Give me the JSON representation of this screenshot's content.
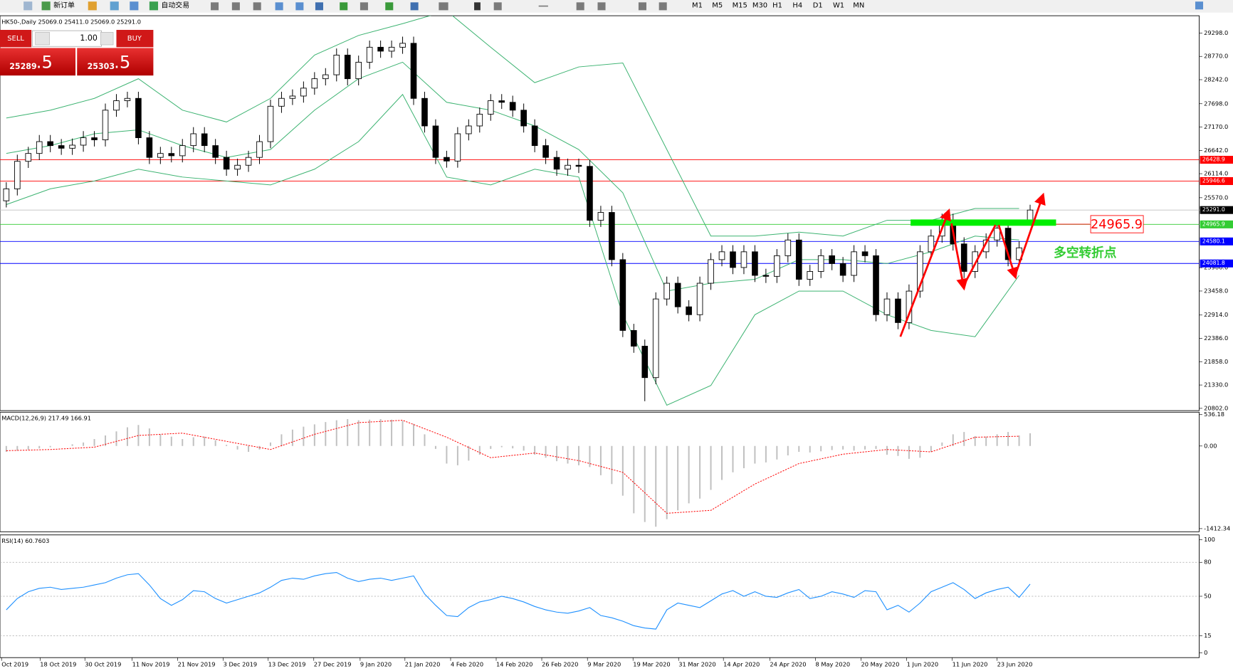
{
  "toolbar": {
    "new_order": "新订单",
    "auto_trading": "自动交易",
    "timeframes": [
      "M1",
      "M5",
      "M15",
      "M30",
      "H1",
      "H4",
      "D1",
      "W1",
      "MN"
    ]
  },
  "trade_panel": {
    "sell": "SELL",
    "buy": "BUY",
    "lots": "1.00",
    "bid": "25289",
    "bid_pips": ".5",
    "ask": "25303",
    "ask_pips": ".5"
  },
  "chart_data": [
    {
      "type": "candlestick",
      "title": "HK50-,Daily  25069.0 25411.0 25069.0 25291.0",
      "up_color": "#ffffff",
      "down_color": "#000000",
      "open": [
        25500,
        25771,
        26394,
        26572,
        26840,
        26750,
        26690,
        26760,
        26928,
        26880,
        27552,
        27766,
        27819,
        26928,
        26483,
        26572,
        26520,
        26750,
        27018,
        26750,
        26483,
        26216,
        26305,
        26483,
        26840,
        27641,
        27819,
        27872,
        28051,
        28264,
        28353,
        28799,
        28264,
        28638,
        28977,
        28888,
        28977,
        29066,
        27819,
        27195,
        26483,
        26400,
        27018,
        27195,
        27462,
        27766,
        27730,
        27552,
        27195,
        26750,
        26483,
        26216,
        26305,
        26280,
        25059,
        25237,
        24168,
        22565,
        22209,
        21497,
        23278,
        23634,
        23100,
        22922,
        23634,
        24168,
        24346,
        23990,
        24346,
        23812,
        23790,
        24257,
        24613,
        23723,
        23901,
        24257,
        24079,
        23812,
        24346,
        24257,
        22922,
        23278,
        22743,
        23456,
        24346,
        24702,
        25059,
        24524,
        23901,
        24346,
        24613,
        24880,
        24168,
        25069
      ],
      "high": [
        25921,
        26544,
        26722,
        26990,
        26990,
        26900,
        26910,
        27078,
        27078,
        27702,
        27916,
        27969,
        27969,
        27078,
        26722,
        26722,
        26900,
        27168,
        27168,
        26900,
        26633,
        26455,
        26633,
        26990,
        27791,
        27969,
        28022,
        28201,
        28414,
        28503,
        28949,
        28949,
        28788,
        29127,
        29127,
        29127,
        29216,
        29216,
        27969,
        27345,
        26633,
        27168,
        27345,
        27612,
        27916,
        27916,
        27880,
        27702,
        27345,
        26900,
        26633,
        26455,
        26455,
        26430,
        25387,
        25387,
        24318,
        22715,
        22359,
        23428,
        23784,
        23784,
        23250,
        23784,
        24318,
        24496,
        24496,
        24496,
        24496,
        23962,
        24407,
        24763,
        24763,
        24051,
        24407,
        24407,
        24229,
        24496,
        24496,
        24407,
        23428,
        23428,
        23606,
        24496,
        24852,
        25209,
        25209,
        24674,
        24496,
        24763,
        25030,
        25030,
        24585,
        25411
      ],
      "low": [
        25350,
        25621,
        26244,
        26422,
        26600,
        26540,
        26540,
        26610,
        26730,
        26730,
        27402,
        27616,
        26778,
        26333,
        26333,
        26370,
        26370,
        26600,
        26600,
        26333,
        26066,
        26066,
        26155,
        26333,
        26690,
        27491,
        27669,
        27722,
        27901,
        28114,
        28203,
        28114,
        28114,
        28488,
        28738,
        28738,
        28827,
        27669,
        27045,
        26333,
        26250,
        26250,
        26868,
        27045,
        27312,
        27580,
        27402,
        27045,
        26600,
        26333,
        26066,
        26066,
        26130,
        24909,
        24909,
        24018,
        22415,
        22059,
        20962,
        21347,
        23128,
        22950,
        22772,
        22772,
        23484,
        24018,
        23840,
        23840,
        23662,
        23640,
        23640,
        24107,
        23573,
        23573,
        23751,
        23929,
        23662,
        23662,
        24107,
        22772,
        22772,
        22593,
        22593,
        23306,
        24196,
        24552,
        24374,
        23751,
        23751,
        24196,
        24463,
        24018,
        24018,
        25069
      ],
      "close": [
        25771,
        26394,
        26572,
        26840,
        26750,
        26690,
        26760,
        26928,
        26880,
        27552,
        27766,
        27819,
        26928,
        26483,
        26572,
        26520,
        26750,
        27018,
        26750,
        26483,
        26216,
        26305,
        26483,
        26840,
        27641,
        27819,
        27872,
        28051,
        28264,
        28353,
        28799,
        28264,
        28638,
        28977,
        28888,
        28977,
        29066,
        27819,
        27195,
        26483,
        26400,
        27018,
        27195,
        27462,
        27766,
        27730,
        27552,
        27195,
        26750,
        26483,
        26216,
        26305,
        26280,
        25059,
        25237,
        24168,
        22565,
        22209,
        21497,
        23278,
        23634,
        23100,
        22922,
        23634,
        24168,
        24346,
        23990,
        24346,
        23812,
        23790,
        24257,
        24613,
        23723,
        23901,
        24257,
        24079,
        23812,
        24346,
        24257,
        22922,
        23278,
        22743,
        23456,
        24346,
        24702,
        25059,
        24524,
        23901,
        24346,
        24613,
        24880,
        24168,
        24435,
        25291
      ],
      "bollinger": {
        "color": "#3cb371",
        "x": [
          0,
          4,
          8,
          12,
          16,
          20,
          24,
          28,
          32,
          36,
          40,
          44,
          48,
          52,
          56,
          60,
          64,
          68,
          72,
          76,
          80,
          84,
          88,
          92
        ],
        "upper": [
          27374,
          27552,
          27819,
          28264,
          27552,
          27285,
          27819,
          28799,
          29244,
          29511,
          29800,
          28977,
          28175,
          28531,
          28620,
          26661,
          24702,
          24702,
          24791,
          24702,
          25059,
          25059,
          25326,
          25326
        ],
        "middle": [
          26572,
          26750,
          27018,
          27107,
          26750,
          26483,
          26661,
          27552,
          28264,
          28638,
          27730,
          27552,
          27195,
          26661,
          25682,
          23456,
          23634,
          23723,
          24168,
          24168,
          24079,
          24346,
          24702,
          24613
        ],
        "lower": [
          25415,
          25771,
          25949,
          26216,
          26038,
          25949,
          25860,
          26216,
          26840,
          27908,
          26038,
          25860,
          26216,
          26038,
          22921,
          20873,
          21319,
          22921,
          23456,
          23456,
          22921,
          22565,
          22423,
          23812
        ]
      },
      "hlines": [
        {
          "value": 26428.9,
          "color": "#ff0000"
        },
        {
          "value": 25946.6,
          "color": "#ff0000"
        },
        {
          "value": 25291,
          "label": "25291.0",
          "color": "#c0c0c0",
          "tag_color": "#000000"
        },
        {
          "value": 24965.9,
          "color": "#33cc33"
        },
        {
          "value": 24580.1,
          "color": "#0000ff"
        },
        {
          "value": 24081.8,
          "color": "#0000ff"
        }
      ],
      "annotations": [
        {
          "text": "24965.9"
        },
        {
          "text": "多空转折点"
        }
      ],
      "xlim": [
        -0.5714,
        108.357
      ],
      "ylim": [
        20750,
        29690
      ],
      "yticks": [
        {
          "value": 29298,
          "label": "29298.0"
        },
        {
          "value": 28770,
          "label": "28770.0"
        },
        {
          "value": 28242,
          "label": "28242.0"
        },
        {
          "value": 27698,
          "label": "27698.0"
        },
        {
          "value": 27170,
          "label": "27170.0"
        },
        {
          "value": 26642,
          "label": "26642.0"
        },
        {
          "value": 26114,
          "label": "26114.0"
        },
        {
          "value": 25570,
          "label": "25570.0"
        },
        {
          "value": 23986,
          "label": "23986.0"
        },
        {
          "value": 23458,
          "label": "23458.0"
        },
        {
          "value": 22914,
          "label": "22914.0"
        },
        {
          "value": 22386,
          "label": "22386.0"
        },
        {
          "value": 21858,
          "label": "21858.0"
        },
        {
          "value": 21330,
          "label": "21330.0"
        },
        {
          "value": 20802,
          "label": "20802.0"
        }
      ],
      "xticks": [
        {
          "value": -0.43,
          "label": "Oct 2019"
        },
        {
          "value": 3.07,
          "label": "18 Oct 2019"
        },
        {
          "value": 7.14,
          "label": "30 Oct 2019"
        },
        {
          "value": 11.43,
          "label": "11 Nov 2019"
        },
        {
          "value": 15.57,
          "label": "21 Nov 2019"
        },
        {
          "value": 19.71,
          "label": "3 Dec 2019"
        },
        {
          "value": 23.79,
          "label": "13 Dec 2019"
        },
        {
          "value": 27.93,
          "label": "27 Dec 2019"
        },
        {
          "value": 32.14,
          "label": "9 Jan 2020"
        },
        {
          "value": 36.21,
          "label": "21 Jan 2020"
        },
        {
          "value": 40.36,
          "label": "4 Feb 2020"
        },
        {
          "value": 44.5,
          "label": "14 Feb 2020"
        },
        {
          "value": 48.64,
          "label": "26 Feb 2020"
        },
        {
          "value": 52.79,
          "label": "9 Mar 2020"
        },
        {
          "value": 56.93,
          "label": "19 Mar 2020"
        },
        {
          "value": 61.07,
          "label": "31 Mar 2020"
        },
        {
          "value": 65.14,
          "label": "14 Apr 2020"
        },
        {
          "value": 69.36,
          "label": "24 Apr 2020"
        },
        {
          "value": 73.5,
          "label": "8 May 2020"
        },
        {
          "value": 77.64,
          "label": "20 May 2020"
        },
        {
          "value": 81.79,
          "label": "1 Jun 2020"
        },
        {
          "value": 85.93,
          "label": "11 Jun 2020"
        },
        {
          "value": 90,
          "label": "23 Jun 2020"
        }
      ]
    },
    {
      "type": "macd",
      "title": "MACD(12,26,9) 217.49 166.91",
      "histogram": {
        "color": "#c0c0c0",
        "values": [
          -100,
          -80,
          -60,
          -40,
          -20,
          0,
          30,
          60,
          120,
          180,
          250,
          320,
          360,
          300,
          200,
          160,
          120,
          150,
          160,
          100,
          20,
          -60,
          -100,
          -60,
          60,
          200,
          280,
          330,
          370,
          410,
          440,
          460,
          440,
          450,
          460,
          450,
          430,
          380,
          200,
          -50,
          -300,
          -330,
          -250,
          -150,
          -50,
          -20,
          -40,
          -80,
          -150,
          -200,
          -260,
          -300,
          -330,
          -360,
          -500,
          -650,
          -850,
          -1150,
          -1300,
          -1380,
          -1250,
          -1100,
          -980,
          -900,
          -750,
          -580,
          -450,
          -380,
          -300,
          -280,
          -230,
          -160,
          -100,
          -110,
          -90,
          -70,
          -60,
          -80,
          -60,
          -50,
          -150,
          -170,
          -220,
          -200,
          -100,
          60,
          200,
          240,
          170,
          160,
          200,
          240,
          180,
          217.49
        ]
      },
      "signal": {
        "color": "#ff0000",
        "x": [
          0,
          4,
          8,
          12,
          16,
          20,
          24,
          28,
          32,
          36,
          40,
          44,
          48,
          52,
          56,
          60,
          64,
          68,
          72,
          76,
          80,
          84,
          88,
          92
        ],
        "values": [
          -80,
          -60,
          -20,
          180,
          220,
          80,
          -60,
          200,
          400,
          440,
          150,
          -200,
          -120,
          -250,
          -450,
          -1150,
          -1100,
          -650,
          -300,
          -140,
          -60,
          -100,
          150,
          166.91
        ]
      },
      "ylim": [
        -1466,
        578
      ],
      "yticks": [
        536.18,
        {
          "value": 0,
          "label": "0.00"
        },
        -1412.34
      ]
    },
    {
      "type": "line",
      "title": "RSI(14) 60.7603",
      "color": "#1e90ff",
      "values": [
        38,
        48,
        54,
        57,
        58,
        56,
        57,
        58,
        60,
        62,
        66,
        69,
        70,
        60,
        48,
        42,
        47,
        55,
        54,
        48,
        44,
        47,
        50,
        53,
        58,
        64,
        66,
        65,
        68,
        70,
        71,
        66,
        63,
        65,
        66,
        64,
        66,
        68,
        52,
        42,
        33,
        32,
        40,
        45,
        47,
        50,
        48,
        45,
        41,
        38,
        36,
        35,
        37,
        40,
        33,
        31,
        28,
        24,
        22,
        21,
        38,
        44,
        42,
        40,
        46,
        52,
        55,
        50,
        54,
        50,
        49,
        53,
        56,
        48,
        50,
        54,
        52,
        49,
        55,
        54,
        38,
        42,
        36,
        44,
        54,
        58,
        62,
        56,
        48,
        53,
        56,
        58,
        49,
        60.7603
      ],
      "levels": [
        80,
        50,
        15
      ],
      "ylim": [
        -4.2,
        104.2
      ],
      "yticks": [
        100,
        80,
        50,
        15,
        0
      ]
    }
  ]
}
